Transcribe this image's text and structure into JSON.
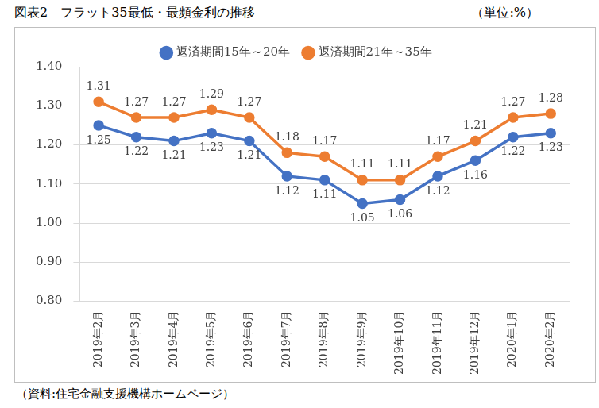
{
  "chart_data": {
    "type": "line",
    "title": "図表2　フラット35最低・最頻金利の推移",
    "subtitle": "（単位:%）",
    "source": "（資料:住宅金融支援機構ホームページ）",
    "categories": [
      "2019年2月",
      "2019年3月",
      "2019年4月",
      "2019年5月",
      "2019年6月",
      "2019年7月",
      "2019年8月",
      "2019年9月",
      "2019年10月",
      "2019年11月",
      "2019年12月",
      "2020年1月",
      "2020年2月"
    ],
    "series": [
      {
        "name": "返済期間15年～20年",
        "color": "#4472c4",
        "marker": "circle",
        "values": [
          1.25,
          1.22,
          1.21,
          1.23,
          1.21,
          1.12,
          1.11,
          1.05,
          1.06,
          1.12,
          1.16,
          1.22,
          1.23
        ]
      },
      {
        "name": "返済期間21年～35年",
        "color": "#ed7d31",
        "marker": "circle",
        "values": [
          1.31,
          1.27,
          1.27,
          1.29,
          1.27,
          1.18,
          1.17,
          1.11,
          1.11,
          1.17,
          1.21,
          1.27,
          1.28
        ]
      }
    ],
    "ylim": [
      0.8,
      1.4
    ],
    "yticks": [
      {
        "value": 0.8,
        "label": "0.80"
      },
      {
        "value": 0.9,
        "label": "0.90"
      },
      {
        "value": 1.0,
        "label": "1.00"
      },
      {
        "value": 1.1,
        "label": "1.10"
      },
      {
        "value": 1.2,
        "label": "1.20"
      },
      {
        "value": 1.3,
        "label": "1.30"
      },
      {
        "value": 1.4,
        "label": "1.40"
      }
    ],
    "grid": true,
    "legend": "top",
    "data_labels": true
  }
}
